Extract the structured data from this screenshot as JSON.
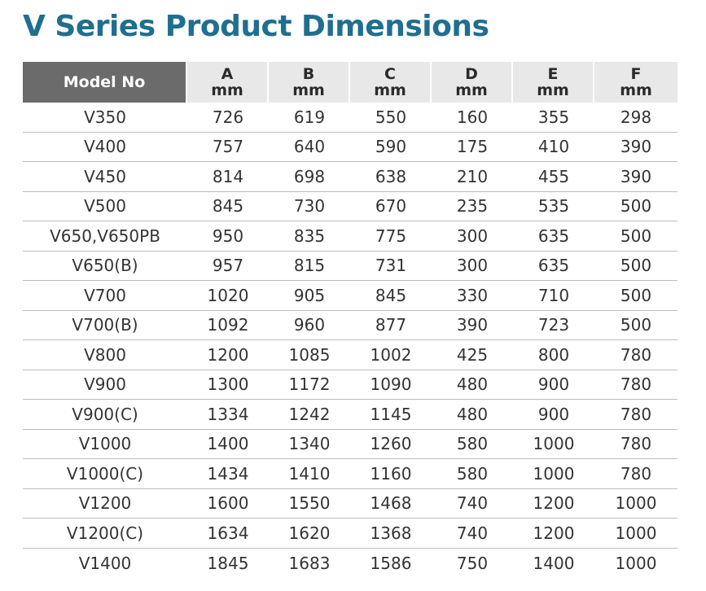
{
  "title": "V Series Product Dimensions",
  "table": {
    "columns": [
      {
        "label": "Model No",
        "unit": ""
      },
      {
        "label": "A",
        "unit": "mm"
      },
      {
        "label": "B",
        "unit": "mm"
      },
      {
        "label": "C",
        "unit": "mm"
      },
      {
        "label": "D",
        "unit": "mm"
      },
      {
        "label": "E",
        "unit": "mm"
      },
      {
        "label": "F",
        "unit": "mm"
      }
    ],
    "rows": [
      [
        "V350",
        "726",
        "619",
        "550",
        "160",
        "355",
        "298"
      ],
      [
        "V400",
        "757",
        "640",
        "590",
        "175",
        "410",
        "390"
      ],
      [
        "V450",
        "814",
        "698",
        "638",
        "210",
        "455",
        "390"
      ],
      [
        "V500",
        "845",
        "730",
        "670",
        "235",
        "535",
        "500"
      ],
      [
        "V650,V650PB",
        "950",
        "835",
        "775",
        "300",
        "635",
        "500"
      ],
      [
        "V650(B)",
        "957",
        "815",
        "731",
        "300",
        "635",
        "500"
      ],
      [
        "V700",
        "1020",
        "905",
        "845",
        "330",
        "710",
        "500"
      ],
      [
        "V700(B)",
        "1092",
        "960",
        "877",
        "390",
        "723",
        "500"
      ],
      [
        "V800",
        "1200",
        "1085",
        "1002",
        "425",
        "800",
        "780"
      ],
      [
        "V900",
        "1300",
        "1172",
        "1090",
        "480",
        "900",
        "780"
      ],
      [
        "V900(C)",
        "1334",
        "1242",
        "1145",
        "480",
        "900",
        "780"
      ],
      [
        "V1000",
        "1400",
        "1340",
        "1260",
        "580",
        "1000",
        "780"
      ],
      [
        "V1000(C)",
        "1434",
        "1410",
        "1160",
        "580",
        "1000",
        "780"
      ],
      [
        "V1200",
        "1600",
        "1550",
        "1468",
        "740",
        "1200",
        "1000"
      ],
      [
        "V1200(C)",
        "1634",
        "1620",
        "1368",
        "740",
        "1200",
        "1000"
      ],
      [
        "V1400",
        "1845",
        "1683",
        "1586",
        "750",
        "1400",
        "1000"
      ]
    ]
  }
}
